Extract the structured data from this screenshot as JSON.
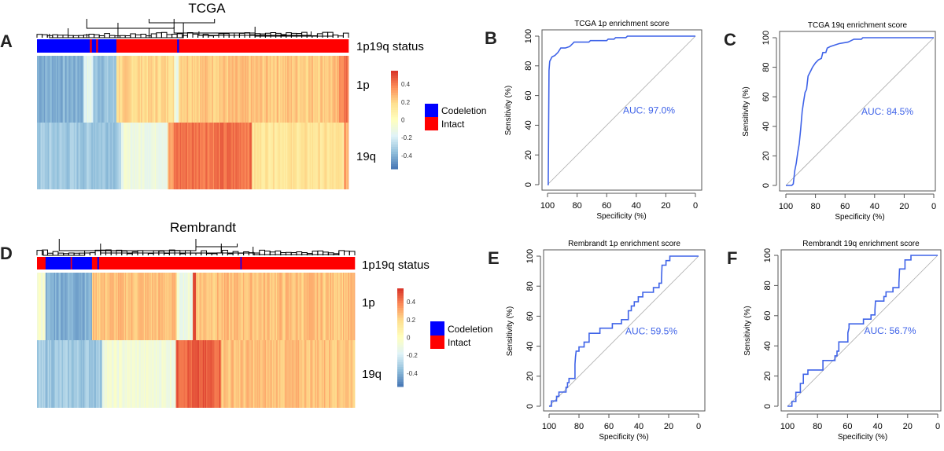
{
  "colors": {
    "codeletion": "#0000ff",
    "intact": "#ff0000",
    "roc_curve": "#3f63e8",
    "diagonal": "#aaaaaa",
    "scale": [
      "#4575b4",
      "#91bfdb",
      "#e0f3f8",
      "#ffffbf",
      "#fee090",
      "#fc8d59",
      "#d73027"
    ]
  },
  "legend": {
    "items": [
      {
        "label": "Codeletion",
        "color": "#0000ff"
      },
      {
        "label": "Intact",
        "color": "#ff0000"
      }
    ]
  },
  "chart_data": [
    {
      "panel": "A",
      "type": "heatmap",
      "title": "TCGA",
      "status_label": "1p19q status",
      "rows": [
        "1p",
        "19q"
      ],
      "colorbar_ticks": [
        "0.4",
        "0.2",
        "0",
        "-0.2",
        "-0.4"
      ],
      "value_range": [
        -0.55,
        0.55
      ],
      "status_segments": [
        {
          "share": 0.17,
          "status": "Codeletion"
        },
        {
          "share": 0.006,
          "status": "Intact"
        },
        {
          "share": 0.014,
          "status": "Codeletion"
        },
        {
          "share": 0.006,
          "status": "Intact"
        },
        {
          "share": 0.059,
          "status": "Codeletion"
        },
        {
          "share": 0.195,
          "status": "Intact"
        },
        {
          "share": 0.006,
          "status": "Codeletion"
        },
        {
          "share": 0.544,
          "status": "Intact"
        }
      ],
      "row_segments": {
        "1p": [
          {
            "share": 0.15,
            "value": -0.4
          },
          {
            "share": 0.03,
            "value": -0.15
          },
          {
            "share": 0.075,
            "value": -0.35
          },
          {
            "share": 0.185,
            "value": 0.2
          },
          {
            "share": 0.015,
            "value": -0.12
          },
          {
            "share": 0.515,
            "value": 0.24
          },
          {
            "share": 0.03,
            "value": 0.4
          }
        ],
        "19q": [
          {
            "share": 0.27,
            "value": -0.33
          },
          {
            "share": 0.15,
            "value": -0.1
          },
          {
            "share": 0.02,
            "value": 0.3
          },
          {
            "share": 0.25,
            "value": 0.42
          },
          {
            "share": 0.295,
            "value": 0.15
          },
          {
            "share": 0.015,
            "value": 0.3
          }
        ]
      }
    },
    {
      "panel": "B",
      "type": "line",
      "title": "TCGA 1p enrichment score",
      "xlabel": "Specificity (%)",
      "ylabel": "Sensitivity (%)",
      "xlim": [
        100,
        0
      ],
      "ylim": [
        0,
        100
      ],
      "xticks": [
        100,
        80,
        60,
        40,
        20,
        0
      ],
      "yticks": [
        0,
        20,
        40,
        60,
        80,
        100
      ],
      "annotation": "AUC: 97.0%",
      "x": [
        100,
        99.5,
        99,
        98.5,
        97,
        95,
        93,
        91,
        88,
        85,
        83,
        82,
        72,
        71,
        60,
        59,
        55,
        54,
        47,
        46,
        0
      ],
      "y": [
        0,
        0,
        77,
        83,
        86,
        87,
        89,
        92,
        92,
        93,
        95,
        96,
        96,
        97,
        97,
        98,
        98,
        99,
        99,
        100,
        100
      ]
    },
    {
      "panel": "C",
      "type": "line",
      "title": "TCGA 19q enrichment score",
      "xlabel": "Specificity (%)",
      "ylabel": "Sensitivity (%)",
      "xlim": [
        100,
        0
      ],
      "ylim": [
        0,
        100
      ],
      "xticks": [
        100,
        80,
        60,
        40,
        20,
        0
      ],
      "yticks": [
        0,
        20,
        40,
        60,
        80,
        100
      ],
      "annotation": "AUC: 84.5%",
      "x": [
        100,
        96,
        95,
        94,
        93,
        92,
        91,
        90,
        89,
        88,
        87,
        86,
        85,
        84,
        83,
        82,
        80,
        78,
        76,
        75,
        73,
        72,
        70,
        67,
        64,
        58,
        56,
        54,
        49,
        48,
        0
      ],
      "y": [
        0,
        0,
        1,
        10,
        15,
        22,
        28,
        38,
        50,
        57,
        63,
        65,
        74,
        76,
        78,
        80,
        83,
        85,
        86,
        90,
        90,
        93,
        94,
        95,
        96,
        97,
        98,
        99,
        99,
        100,
        100
      ]
    },
    {
      "panel": "D",
      "type": "heatmap",
      "title": "Rembrandt",
      "status_label": "1p19q status",
      "rows": [
        "1p",
        "19q"
      ],
      "colorbar_ticks": [
        "0.4",
        "0.2",
        "0",
        "-0.2",
        "-0.4"
      ],
      "value_range": [
        -0.55,
        0.55
      ],
      "status_segments": [
        {
          "share": 0.027,
          "status": "Intact"
        },
        {
          "share": 0.079,
          "status": "Codeletion"
        },
        {
          "share": 0.004,
          "status": "Intact"
        },
        {
          "share": 0.063,
          "status": "Codeletion"
        },
        {
          "share": 0.017,
          "status": "Intact"
        },
        {
          "share": 0.005,
          "status": "Codeletion"
        },
        {
          "share": 0.445,
          "status": "Intact"
        },
        {
          "share": 0.004,
          "status": "Codeletion"
        },
        {
          "share": 0.356,
          "status": "Intact"
        }
      ],
      "row_segments": {
        "1p": [
          {
            "share": 0.027,
            "value": -0.05
          },
          {
            "share": 0.146,
            "value": -0.4
          },
          {
            "share": 0.267,
            "value": 0.25
          },
          {
            "share": 0.05,
            "value": -0.1
          },
          {
            "share": 0.01,
            "value": 0.5
          },
          {
            "share": 0.5,
            "value": 0.25
          }
        ],
        "19q": [
          {
            "share": 0.205,
            "value": -0.33
          },
          {
            "share": 0.232,
            "value": -0.08
          },
          {
            "share": 0.143,
            "value": 0.45
          },
          {
            "share": 0.42,
            "value": 0.25
          }
        ]
      }
    },
    {
      "panel": "E",
      "type": "line",
      "title": "Rembrandt 1p enrichment score",
      "xlabel": "Specificity (%)",
      "ylabel": "Sensitivity (%)",
      "xlim": [
        100,
        0
      ],
      "ylim": [
        0,
        100
      ],
      "xticks": [
        100,
        80,
        60,
        40,
        20,
        0
      ],
      "yticks": [
        0,
        20,
        40,
        60,
        80,
        100
      ],
      "annotation": "AUC: 59.5%",
      "x": [
        100,
        98.4,
        98.4,
        95,
        95,
        93.4,
        93.4,
        88.7,
        88.7,
        87.7,
        87.7,
        86.7,
        86.7,
        82.7,
        82.7,
        82.3,
        81.9,
        80,
        80,
        76.6,
        76.6,
        73.2,
        73.2,
        66,
        66,
        57.7,
        57.7,
        51.6,
        51.6,
        47,
        47,
        45,
        45,
        43,
        43,
        40.3,
        40.3,
        37.3,
        37.3,
        30.2,
        30.2,
        26.4,
        26.4,
        24.8,
        24.8,
        24.4,
        21.8,
        21.8,
        19.2,
        19.2,
        0
      ],
      "y": [
        0,
        0,
        3.5,
        3.5,
        6.6,
        6.6,
        9.4,
        9.4,
        12.6,
        12.6,
        15.7,
        15.7,
        18.5,
        18.5,
        28,
        33,
        36.7,
        36.7,
        39.5,
        39.5,
        42.7,
        42.7,
        48.6,
        48.6,
        52,
        52,
        55,
        55,
        57.7,
        57.7,
        63.6,
        63.6,
        66.8,
        66.8,
        69.6,
        69.6,
        72.9,
        72.9,
        75.9,
        75.9,
        79,
        79,
        82,
        82,
        85.3,
        94,
        94,
        97,
        97,
        100,
        100
      ]
    },
    {
      "panel": "F",
      "type": "line",
      "title": "Rembrandt 19q enrichment score",
      "xlabel": "Specificity (%)",
      "ylabel": "Sensitivity (%)",
      "xlim": [
        100,
        0
      ],
      "ylim": [
        0,
        100
      ],
      "xticks": [
        100,
        80,
        60,
        40,
        20,
        0
      ],
      "yticks": [
        0,
        20,
        40,
        60,
        80,
        100
      ],
      "annotation": "AUC: 56.7%",
      "x": [
        100,
        97,
        97,
        94.4,
        94.4,
        91.4,
        91.4,
        89.4,
        89.4,
        86.4,
        86.4,
        76.4,
        76.4,
        68.4,
        68.4,
        67,
        67,
        65.8,
        65.8,
        59.8,
        59.8,
        59,
        59,
        49.4,
        49.4,
        44.4,
        44.4,
        41.8,
        41.8,
        41.4,
        35.8,
        35.8,
        34.4,
        34.4,
        29.8,
        29.8,
        25.8,
        25.8,
        25.4,
        21.8,
        21.8,
        17.8,
        17.8,
        0
      ],
      "y": [
        0,
        0,
        3.1,
        3.1,
        9.2,
        9.2,
        15.1,
        15.1,
        21.2,
        21.2,
        24,
        24,
        30.3,
        30.3,
        33.4,
        33.4,
        36.5,
        36.5,
        42.6,
        42.6,
        48.7,
        51.8,
        54.6,
        54.6,
        57.7,
        57.7,
        60.5,
        60.5,
        63.7,
        69.7,
        69.7,
        72.7,
        72.7,
        75.8,
        75.8,
        78.6,
        78.6,
        81.7,
        91,
        91,
        97,
        97,
        100,
        100
      ]
    }
  ]
}
